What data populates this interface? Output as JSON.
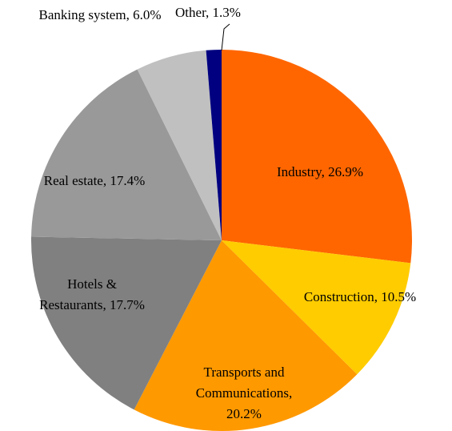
{
  "chart_data": {
    "type": "pie",
    "labels": [
      [
        "Industry, 26.9%"
      ],
      [
        "Construction, 10.5%"
      ],
      [
        "Transports and",
        "Communications,",
        "20.2%"
      ],
      [
        "Hotels &",
        "Restaurants, 17.7%"
      ],
      [
        "Real estate, 17.4%"
      ],
      [
        "Banking system, 6.0%"
      ],
      [
        "Other, 1.3%"
      ]
    ],
    "values": [
      26.9,
      10.5,
      20.2,
      17.7,
      17.4,
      6.0,
      1.3
    ],
    "colors": [
      "#FF6600",
      "#FFCC00",
      "#FF9900",
      "#808080",
      "#999999",
      "#C0C0C0",
      "#000080"
    ]
  }
}
